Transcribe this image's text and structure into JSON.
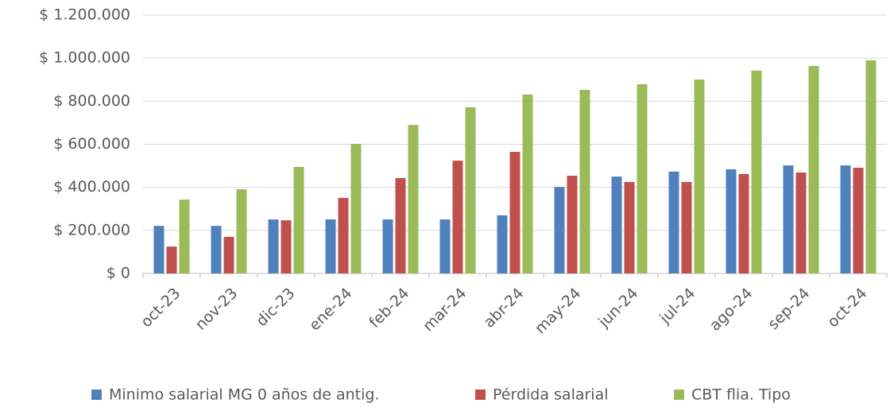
{
  "chart_data": {
    "type": "bar",
    "categories": [
      "oct-23",
      "nov-23",
      "dic-23",
      "ene-24",
      "feb-24",
      "mar-24",
      "abr-24",
      "may-24",
      "jun-24",
      "jul-24",
      "ago-24",
      "sep-24",
      "oct-24"
    ],
    "series": [
      {
        "name": "Minimo salarial MG 0 años de antig.",
        "color": "#4f81bd",
        "values": [
          221000,
          221000,
          251000,
          251000,
          251000,
          251000,
          270000,
          402000,
          450000,
          473000,
          484000,
          502000,
          502000
        ]
      },
      {
        "name": "Pérdida salarial",
        "color": "#c0504d",
        "values": [
          125000,
          170000,
          247000,
          351000,
          443000,
          524000,
          565000,
          454000,
          425000,
          425000,
          462000,
          469000,
          491000
        ]
      },
      {
        "name": "CBT flia. Tipo",
        "color": "#9bbb59",
        "values": [
          343000,
          391000,
          495000,
          602000,
          690000,
          772000,
          831000,
          853000,
          879000,
          901000,
          942000,
          964000,
          990000
        ]
      }
    ],
    "ylim": [
      0,
      1200000
    ],
    "yticks": [
      {
        "value": 0,
        "label": "$ 0"
      },
      {
        "value": 200000,
        "label": "$ 200.000"
      },
      {
        "value": 400000,
        "label": "$ 400.000"
      },
      {
        "value": 600000,
        "label": "$ 600.000"
      },
      {
        "value": 800000,
        "label": "$ 800.000"
      },
      {
        "value": 1000000,
        "label": "$ 1.000.000"
      },
      {
        "value": 1200000,
        "label": "$ 1.200.000"
      }
    ],
    "grid": true,
    "legend": "bottom"
  }
}
